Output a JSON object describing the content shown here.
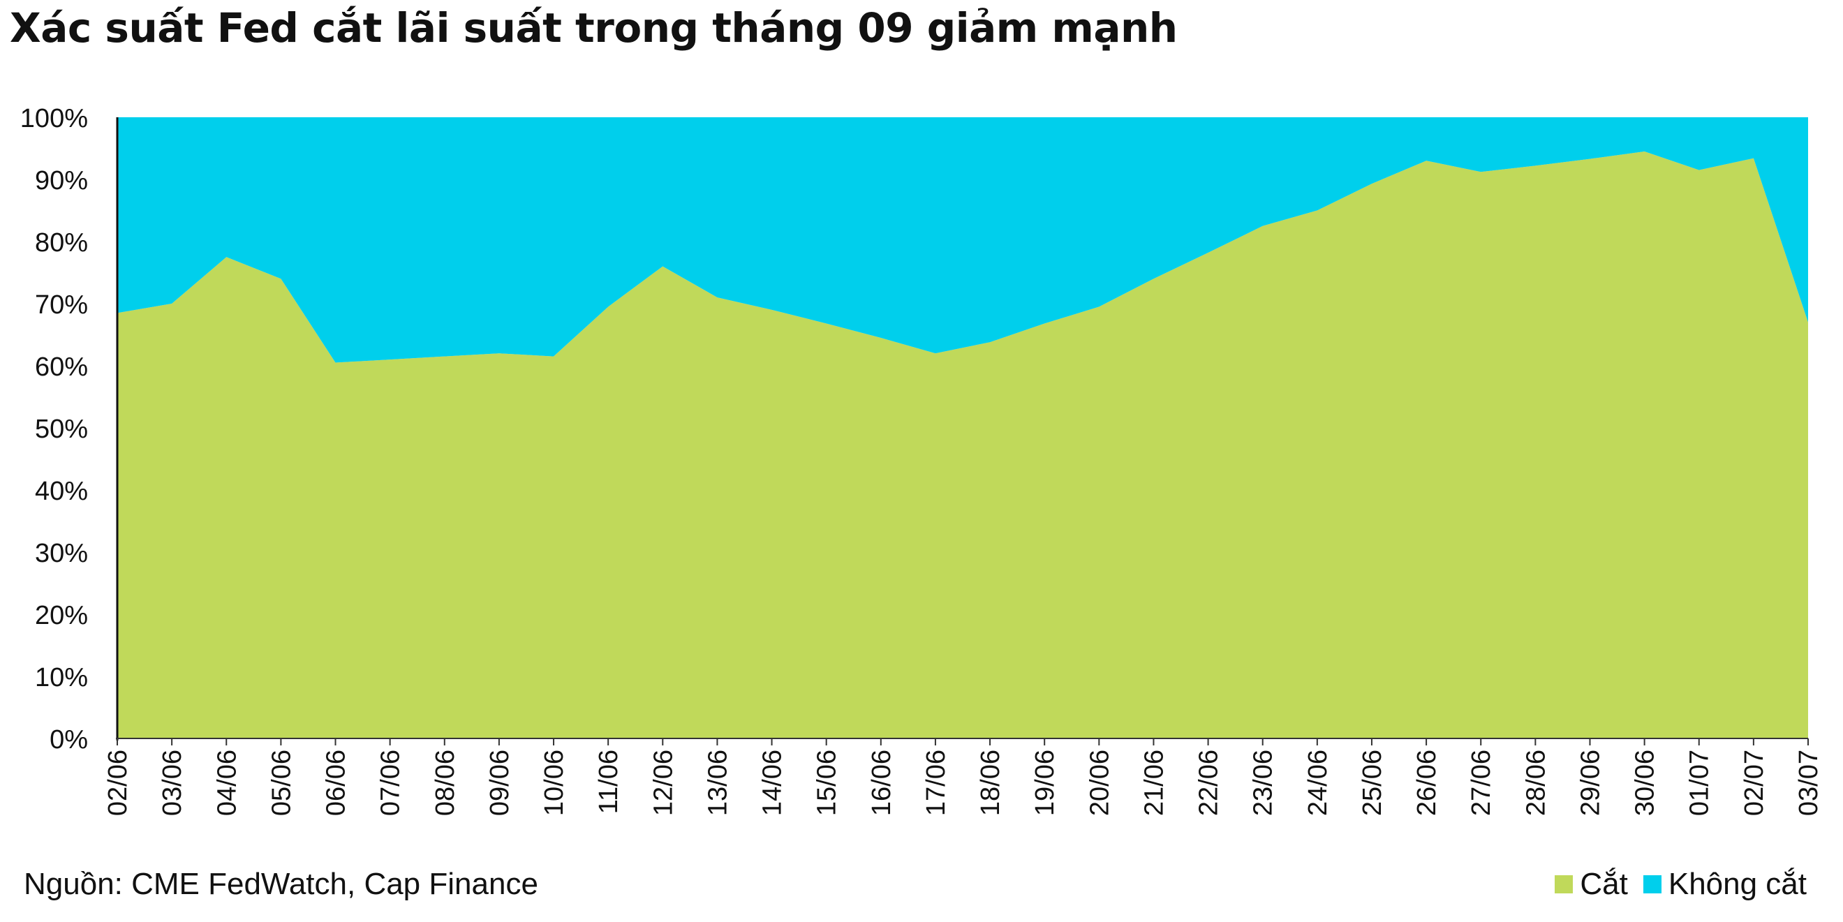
{
  "chart_data": {
    "type": "area",
    "stacked": true,
    "title": "Xác suất Fed cắt lãi suất trong tháng 09 giảm mạnh",
    "categories": [
      "02/06",
      "03/06",
      "04/06",
      "05/06",
      "06/06",
      "07/06",
      "08/06",
      "09/06",
      "10/06",
      "11/06",
      "12/06",
      "13/06",
      "14/06",
      "15/06",
      "16/06",
      "17/06",
      "18/06",
      "19/06",
      "20/06",
      "21/06",
      "22/06",
      "23/06",
      "24/06",
      "25/06",
      "26/06",
      "27/06",
      "28/06",
      "29/06",
      "30/06",
      "01/07",
      "02/07",
      "03/07"
    ],
    "series": [
      {
        "name": "Cắt",
        "color": "#c0d95a",
        "values": [
          68.5,
          70,
          77.5,
          74,
          60.5,
          61,
          61.5,
          62,
          61.5,
          69.5,
          76,
          71,
          69,
          66.8,
          64.5,
          62,
          63.8,
          66.8,
          69.5,
          74,
          78.2,
          82.5,
          85,
          89.3,
          93,
          91.2,
          92.2,
          93.3,
          94.5,
          91.5,
          93.4,
          67
        ]
      },
      {
        "name": "Không cắt",
        "color": "#00cfec",
        "values": [
          31.5,
          30,
          22.5,
          26,
          39.5,
          39,
          38.5,
          38,
          38.5,
          30.5,
          24,
          29,
          31,
          33.2,
          35.5,
          38,
          36.2,
          33.2,
          30.5,
          26,
          21.8,
          17.5,
          15,
          10.7,
          7,
          8.8,
          7.8,
          6.7,
          5.5,
          8.5,
          6.6,
          33
        ]
      }
    ],
    "ylim": [
      0,
      100
    ],
    "yticks": [
      "0%",
      "10%",
      "20%",
      "30%",
      "40%",
      "50%",
      "60%",
      "70%",
      "80%",
      "90%",
      "100%"
    ],
    "legend_position": "bottom-right",
    "grid": false
  },
  "source_note": "Nguồn: CME FedWatch, Cap Finance"
}
